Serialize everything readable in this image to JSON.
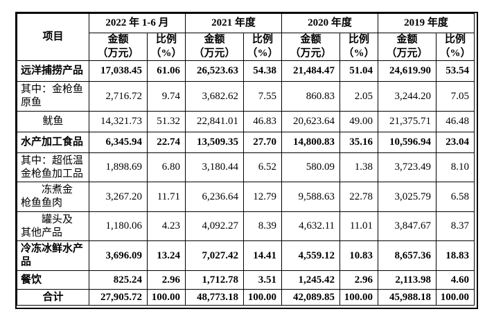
{
  "table": {
    "border_color": "#000000",
    "text_color": "#000000",
    "background_color": "#ffffff",
    "header": {
      "item": "项目",
      "year_groups": [
        "2022 年 1-6 月",
        "2021 年度",
        "2020 年度",
        "2019 年度"
      ],
      "amount_label": "金额\n（万元）",
      "ratio_label": "比例\n（%）"
    },
    "rows": [
      {
        "label": "远洋捕捞产品",
        "bold": true,
        "align": "left",
        "values": [
          "17,038.45",
          "61.06",
          "26,523.63",
          "54.38",
          "21,484.47",
          "51.04",
          "24,619.90",
          "53.54"
        ]
      },
      {
        "label": "其中：金枪鱼\n原鱼",
        "bold": false,
        "align": "left",
        "values": [
          "2,716.72",
          "9.74",
          "3,682.62",
          "7.55",
          "860.83",
          "2.05",
          "3,244.20",
          "7.05"
        ]
      },
      {
        "label": "鱿鱼",
        "bold": false,
        "align": "center",
        "values": [
          "14,321.73",
          "51.32",
          "22,841.01",
          "46.83",
          "20,623.64",
          "49.00",
          "21,375.71",
          "46.48"
        ]
      },
      {
        "label": "水产加工食品",
        "bold": true,
        "align": "left",
        "values": [
          "6,345.94",
          "22.74",
          "13,509.35",
          "27.70",
          "14,800.83",
          "35.16",
          "10,596.94",
          "23.04"
        ]
      },
      {
        "label": "其中：超低温\n金枪鱼加工品",
        "bold": false,
        "align": "left",
        "values": [
          "1,898.69",
          "6.80",
          "3,180.44",
          "6.52",
          "580.09",
          "1.38",
          "3,723.49",
          "8.10"
        ]
      },
      {
        "label": "　　冻煮金\n枪鱼鱼肉",
        "bold": false,
        "align": "left",
        "values": [
          "3,267.20",
          "11.71",
          "6,236.64",
          "12.79",
          "9,588.63",
          "22.78",
          "3,025.79",
          "6.58"
        ]
      },
      {
        "label": "　　罐头及\n其他产品",
        "bold": false,
        "align": "left",
        "values": [
          "1,180.06",
          "4.23",
          "4,092.27",
          "8.39",
          "4,632.11",
          "11.01",
          "3,847.67",
          "8.37"
        ]
      },
      {
        "label": "冷冻冰鲜水产\n品",
        "bold": true,
        "align": "left",
        "values": [
          "3,696.09",
          "13.24",
          "7,027.42",
          "14.41",
          "4,559.12",
          "10.83",
          "8,657.36",
          "18.83"
        ]
      },
      {
        "label": "餐饮",
        "bold": true,
        "align": "left",
        "values": [
          "825.24",
          "2.96",
          "1,712.78",
          "3.51",
          "1,245.42",
          "2.96",
          "2,113.98",
          "4.60"
        ]
      },
      {
        "label": "合计",
        "bold": true,
        "align": "center",
        "values": [
          "27,905.72",
          "100.00",
          "48,773.18",
          "100.00",
          "42,089.85",
          "100.00",
          "45,988.18",
          "100.00"
        ]
      }
    ]
  }
}
